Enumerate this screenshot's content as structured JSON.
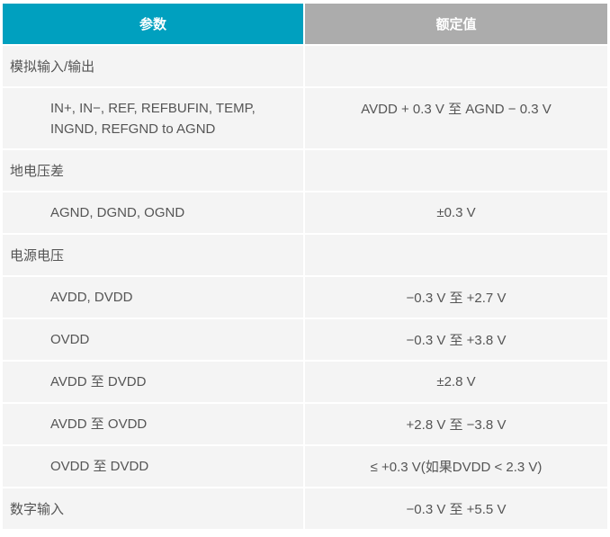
{
  "header": {
    "param": "参数",
    "value": "额定值"
  },
  "rows": [
    {
      "type": "group",
      "param": "模拟输入/输出",
      "value": ""
    },
    {
      "type": "item",
      "param": "IN+, IN−, REF, REFBUFIN, TEMP, INGND, REFGND to AGND",
      "value": "AVDD + 0.3 V 至 AGND − 0.3 V"
    },
    {
      "type": "group",
      "param": "地电压差",
      "value": ""
    },
    {
      "type": "item",
      "param": "AGND, DGND, OGND",
      "value": "±0.3 V"
    },
    {
      "type": "group",
      "param": "电源电压",
      "value": ""
    },
    {
      "type": "item",
      "param": "AVDD, DVDD",
      "value": "−0.3 V 至 +2.7 V"
    },
    {
      "type": "item",
      "param": "OVDD",
      "value": "−0.3 V 至 +3.8 V"
    },
    {
      "type": "item",
      "param": "AVDD 至 DVDD",
      "value": "±2.8 V"
    },
    {
      "type": "item",
      "param": "AVDD 至 OVDD",
      "value": "+2.8 V 至 −3.8 V"
    },
    {
      "type": "item",
      "param": "OVDD 至 DVDD",
      "value": "≤ +0.3 V(如果DVDD < 2.3 V)"
    },
    {
      "type": "group",
      "param": "数字输入",
      "value": "−0.3 V 至 +5.5 V"
    }
  ],
  "colors": {
    "header_param_bg": "#00a0bf",
    "header_value_bg": "#acacac",
    "cell_bg": "#f4f4f4"
  }
}
